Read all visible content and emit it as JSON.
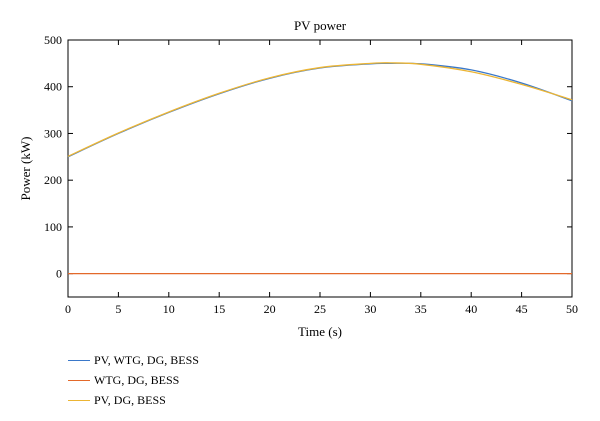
{
  "chart_data": {
    "type": "line",
    "title": "PV power",
    "xlabel": "Time (s)",
    "ylabel": "Power (kW)",
    "xlim": [
      0,
      50
    ],
    "ylim": [
      -50,
      500
    ],
    "x_ticks": [
      0,
      5,
      10,
      15,
      20,
      25,
      30,
      35,
      40,
      45,
      50
    ],
    "y_ticks": [
      0,
      100,
      200,
      300,
      400,
      500
    ],
    "grid": false,
    "legend_position": "bottom-left, outside plot",
    "x": [
      0,
      5,
      10,
      15,
      20,
      25,
      30,
      32,
      35,
      40,
      45,
      50
    ],
    "series": [
      {
        "name": "PV, WTG, DG, BESS",
        "color": "#3a78c9",
        "values": [
          250,
          300,
          345,
          385,
          418,
          440,
          449,
          450,
          449,
          436,
          408,
          370
        ]
      },
      {
        "name": "WTG, DG, BESS",
        "color": "#e3692a",
        "values": [
          0,
          0,
          0,
          0,
          0,
          0,
          0,
          0,
          0,
          0,
          0,
          0
        ]
      },
      {
        "name": "PV, DG, BESS",
        "color": "#ecb534",
        "values": [
          251,
          301,
          346,
          386,
          419,
          441,
          450,
          451,
          448,
          432,
          405,
          372
        ]
      }
    ]
  }
}
